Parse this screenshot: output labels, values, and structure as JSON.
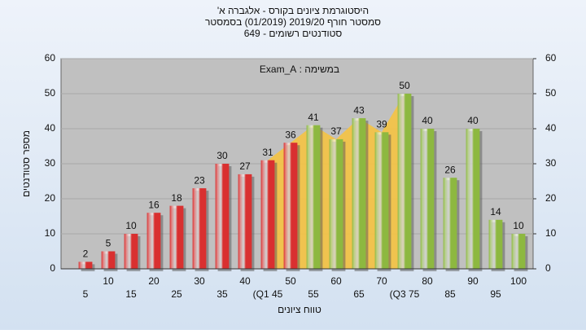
{
  "chart_data": {
    "type": "bar",
    "title": [
      "היסטוגרמת ציונים בקורס - אלגברה א'",
      "סמסטר חורף 2019/20 (01/2019) בסמסטר",
      "סטודנטים רשומים - 649"
    ],
    "annotation": "במשימה : Exam_A",
    "y_label": "מספר סטודנטים",
    "x_label": "טווח ציונים",
    "categories": [
      "5",
      "10",
      "15",
      "20",
      "25",
      "30",
      "35",
      "40",
      "(Q1 45",
      "50",
      "55",
      "60",
      "65",
      "70",
      "(Q3 75",
      "80",
      "85",
      "90",
      "95",
      "100"
    ],
    "values": [
      2,
      5,
      10,
      16,
      18,
      23,
      30,
      27,
      31,
      36,
      41,
      37,
      43,
      39,
      50,
      40,
      26,
      40,
      14,
      10
    ],
    "bar_colors": [
      "#d93030",
      "#d93030",
      "#d93030",
      "#d93030",
      "#d93030",
      "#d93030",
      "#d93030",
      "#d93030",
      "#d93030",
      "#d93030",
      "#8db840",
      "#8db840",
      "#8db840",
      "#8db840",
      "#8db840",
      "#8db840",
      "#8db840",
      "#8db840",
      "#8db840",
      "#8db840"
    ],
    "ylim": [
      0,
      60
    ],
    "yticks": [
      0,
      10,
      20,
      30,
      40,
      50,
      60
    ],
    "y2lim": [
      0,
      60
    ],
    "y2ticks": [
      0,
      10,
      20,
      30,
      40,
      50,
      60
    ],
    "grid": true
  }
}
